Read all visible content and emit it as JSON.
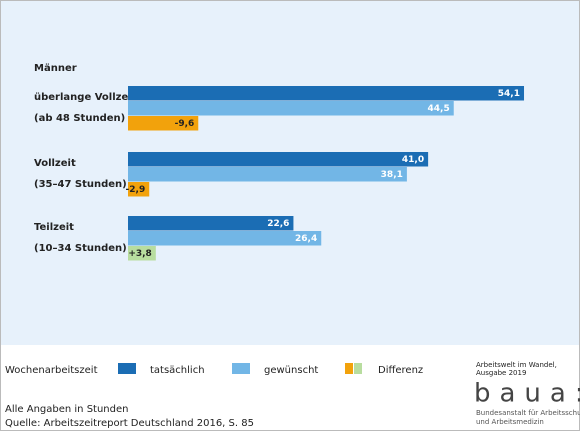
{
  "chart_data": {
    "type": "bar",
    "orientation": "horizontal",
    "group_title": "Männer",
    "categories": [
      [
        "überlange Vollzeit",
        "(ab 48 Stunden)"
      ],
      [
        "Vollzeit",
        "(35–47 Stunden)"
      ],
      [
        "Teilzeit",
        "(10–34 Stunden)"
      ]
    ],
    "series": [
      {
        "name": "tatsächlich",
        "color": "#1b6db4",
        "values": [
          54.1,
          41.0,
          22.6
        ],
        "value_labels": [
          "54,1",
          "41,0",
          "22,6"
        ]
      },
      {
        "name": "gewünscht",
        "color": "#72b6e6",
        "values": [
          44.5,
          38.1,
          26.4
        ],
        "value_labels": [
          "44,5",
          "38,1",
          "26,4"
        ]
      },
      {
        "name": "Differenz",
        "colors": [
          "#f2a20c",
          "#f2a20c",
          "#b8dd9f"
        ],
        "values": [
          -9.6,
          -2.9,
          3.8
        ],
        "value_labels": [
          "-9,6",
          "-2,9",
          "+3,8"
        ]
      }
    ],
    "legend_title": "Wochenarbeitszeit",
    "notes": [
      "Alle Angaben in Stunden",
      "Quelle: Arbeitszeitreport Deutschland 2016, S. 85"
    ],
    "publication": [
      "Arbeitswelt im Wandel,",
      "Ausgabe 2019"
    ],
    "logo": "baua:",
    "institution": [
      "Bundesanstalt für Arbeitsschutz",
      "und Arbeitsmedizin"
    ]
  }
}
